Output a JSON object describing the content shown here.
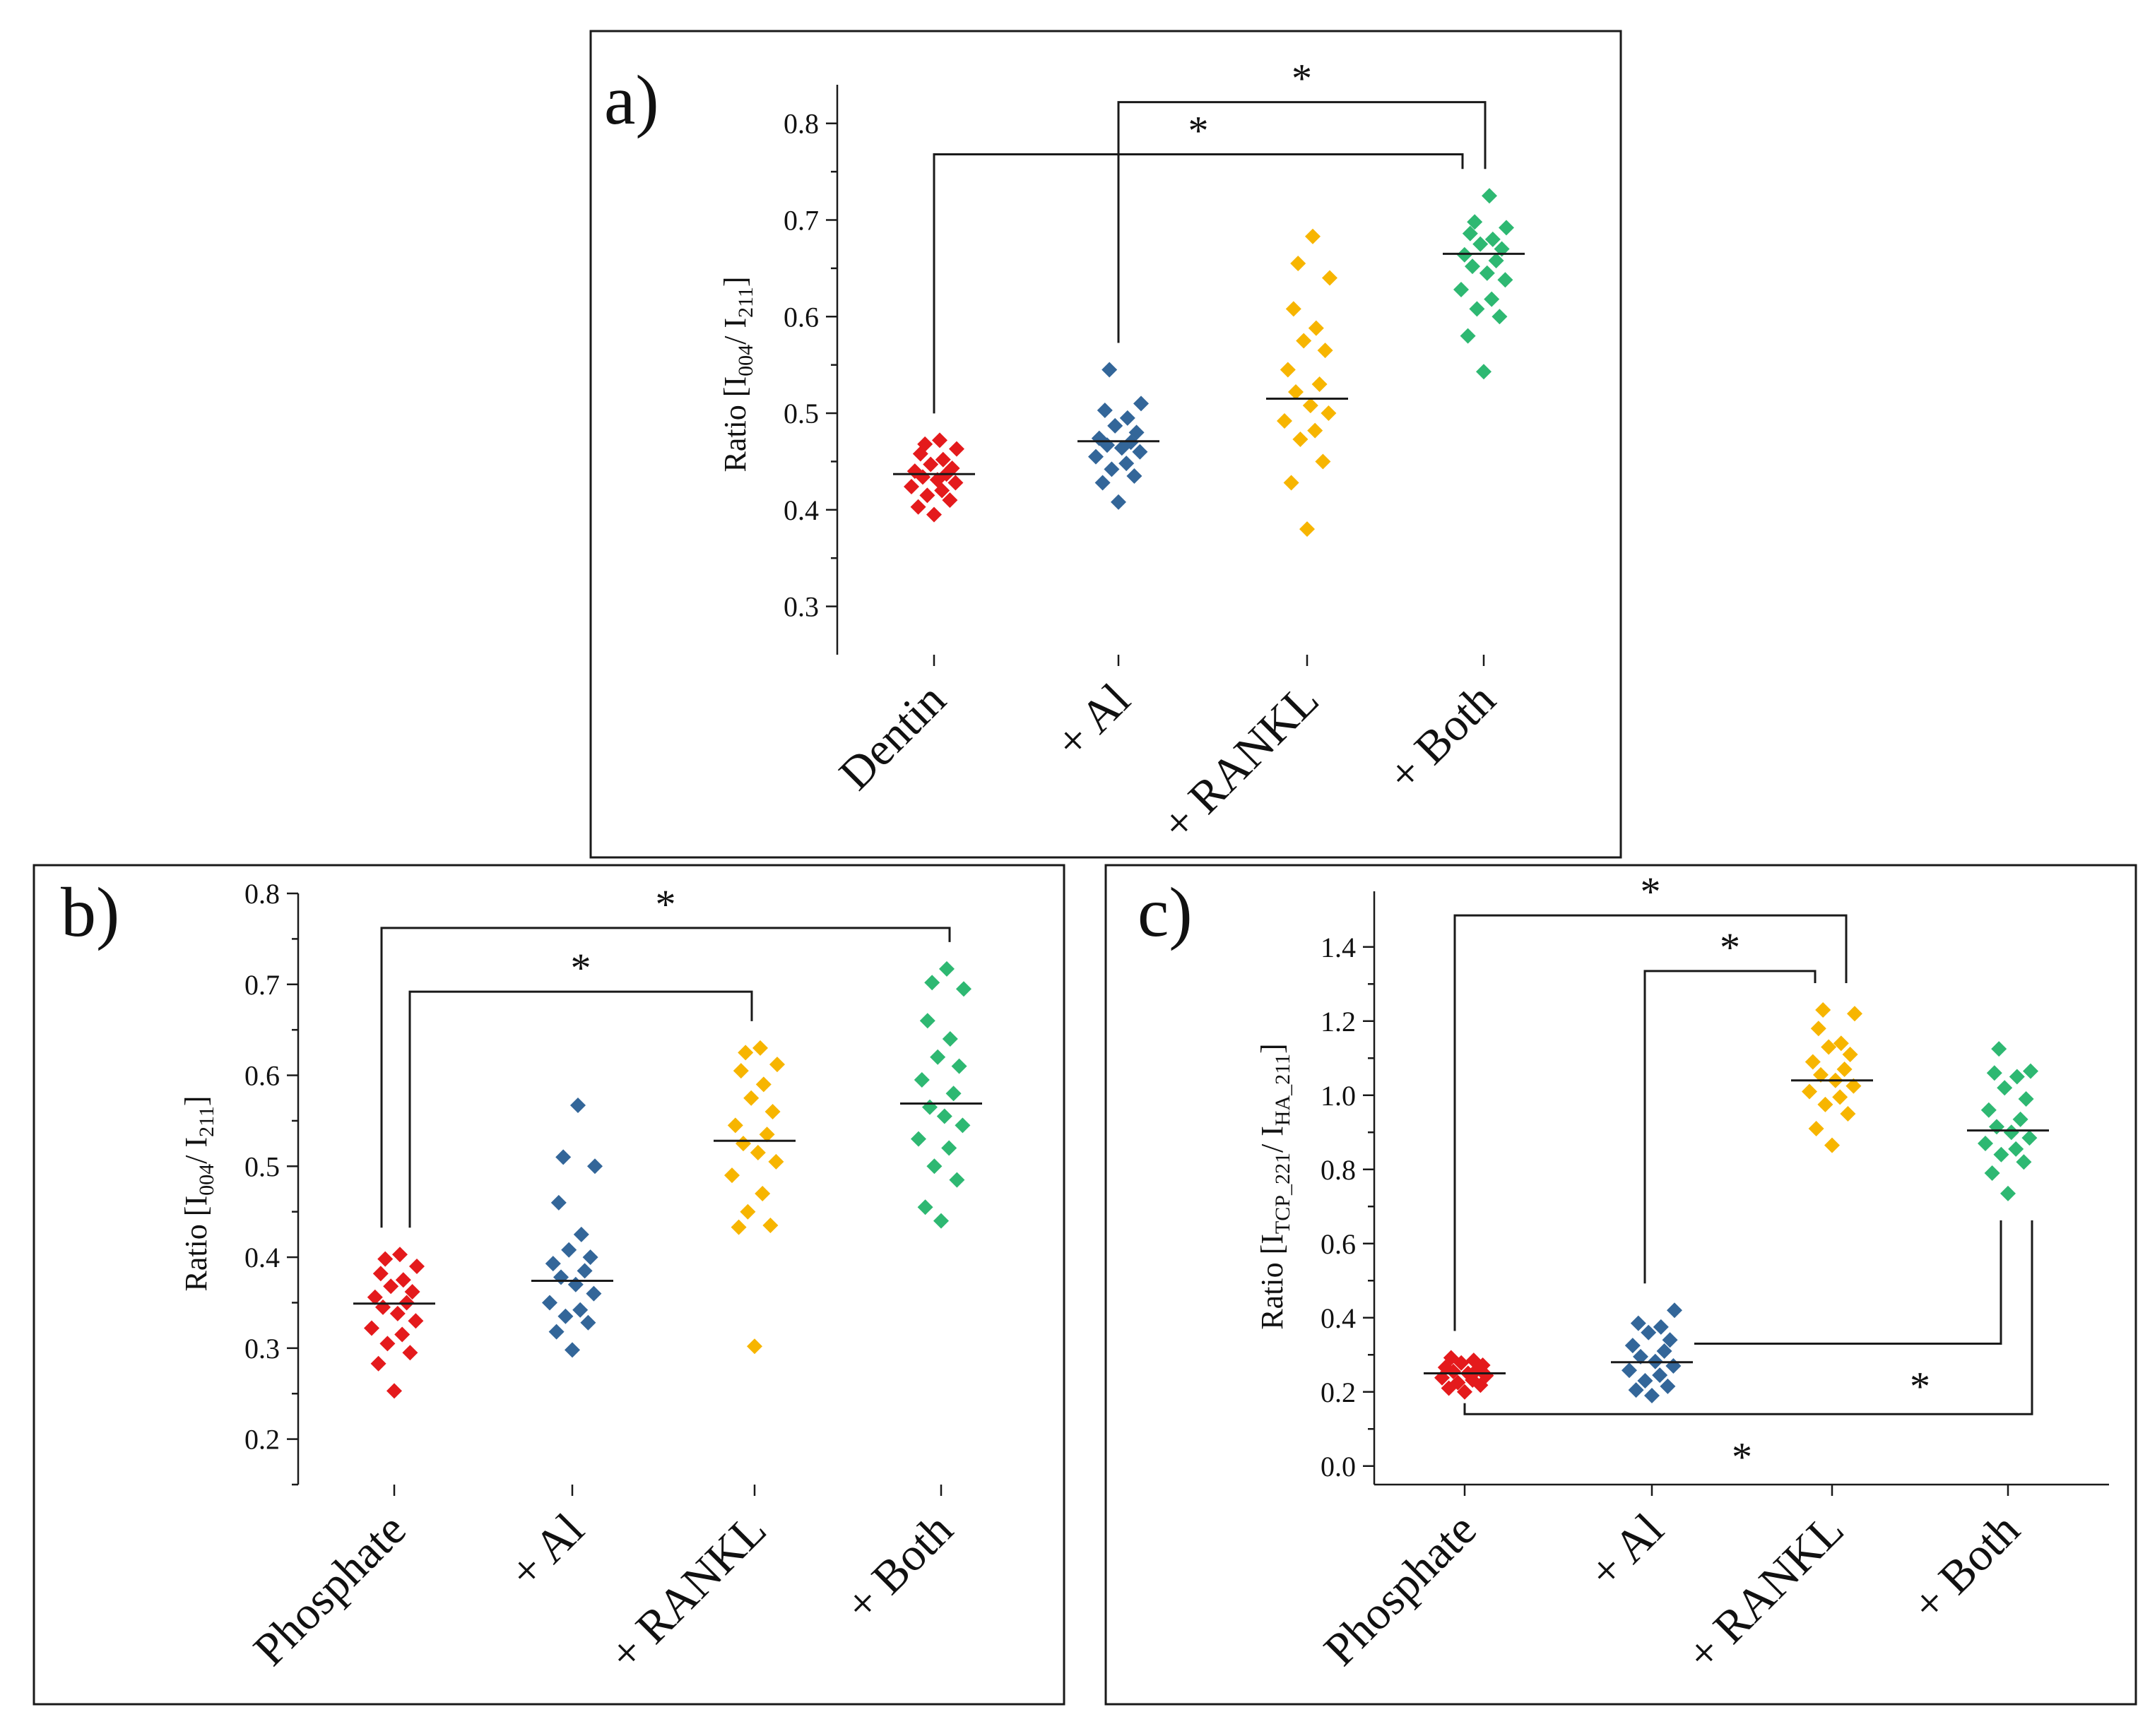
{
  "colors": {
    "red": "#e41a1c",
    "blue": "#336699",
    "orange": "#f7b500",
    "green": "#2eb872"
  },
  "chart_data": [
    {
      "id": "a",
      "type": "scatter",
      "panel_label": "a)",
      "ylabel": {
        "prefix": "Ratio [I",
        "sub1": "004",
        "mid": "/ I",
        "sub2": "211",
        "suffix": "]"
      },
      "ylim": [
        0.25,
        0.84
      ],
      "yticks": [
        0.3,
        0.4,
        0.5,
        0.6,
        0.7,
        0.8
      ],
      "yticks_labels": [
        "0.3",
        "0.4",
        "0.5",
        "0.6",
        "0.7",
        "0.8"
      ],
      "categories": [
        "Dentin",
        "+ Al",
        "+ RANKL",
        "+ Both"
      ],
      "series": [
        {
          "name": "Dentin",
          "color": "red",
          "mean": 0.437,
          "values": [
            0.395,
            0.403,
            0.41,
            0.415,
            0.42,
            0.424,
            0.428,
            0.431,
            0.434,
            0.437,
            0.44,
            0.443,
            0.447,
            0.452,
            0.458,
            0.463,
            0.468,
            0.472
          ]
        },
        {
          "name": "+ Al",
          "color": "blue",
          "mean": 0.471,
          "values": [
            0.408,
            0.428,
            0.435,
            0.442,
            0.448,
            0.455,
            0.46,
            0.464,
            0.467,
            0.47,
            0.474,
            0.48,
            0.487,
            0.495,
            0.503,
            0.51,
            0.545
          ]
        },
        {
          "name": "+ RANKL",
          "color": "orange",
          "mean": 0.515,
          "values": [
            0.38,
            0.428,
            0.45,
            0.473,
            0.482,
            0.492,
            0.5,
            0.508,
            0.522,
            0.53,
            0.545,
            0.565,
            0.575,
            0.588,
            0.608,
            0.64,
            0.655,
            0.683
          ]
        },
        {
          "name": "+ Both",
          "color": "green",
          "mean": 0.665,
          "values": [
            0.543,
            0.58,
            0.6,
            0.608,
            0.618,
            0.628,
            0.638,
            0.645,
            0.652,
            0.658,
            0.664,
            0.67,
            0.675,
            0.68,
            0.686,
            0.692,
            0.698,
            0.725
          ]
        }
      ],
      "brackets": [
        {
          "from": 0,
          "to": 3,
          "y": 0.768,
          "label": "*"
        },
        {
          "from": 1,
          "to": 3,
          "y": 0.822,
          "label": "*"
        }
      ]
    },
    {
      "id": "b",
      "type": "scatter",
      "panel_label": "b)",
      "ylabel": {
        "prefix": "Ratio [I",
        "sub1": "004",
        "mid": "/ I",
        "sub2": "211",
        "suffix": "]"
      },
      "ylim": [
        0.15,
        0.8
      ],
      "yticks": [
        0.2,
        0.3,
        0.4,
        0.5,
        0.6,
        0.7,
        0.8
      ],
      "yticks_labels": [
        "0.2",
        "0.3",
        "0.4",
        "0.5",
        "0.6",
        "0.7",
        "0.8"
      ],
      "categories": [
        "Phosphate",
        "+ Al",
        "+ RANKL",
        "+ Both"
      ],
      "series": [
        {
          "name": "Phosphate",
          "color": "red",
          "mean": 0.349,
          "values": [
            0.253,
            0.283,
            0.295,
            0.305,
            0.315,
            0.322,
            0.33,
            0.338,
            0.345,
            0.35,
            0.356,
            0.362,
            0.368,
            0.375,
            0.382,
            0.39,
            0.398,
            0.403
          ]
        },
        {
          "name": "+ Al",
          "color": "blue",
          "mean": 0.374,
          "values": [
            0.298,
            0.318,
            0.328,
            0.335,
            0.342,
            0.35,
            0.36,
            0.37,
            0.378,
            0.385,
            0.393,
            0.4,
            0.408,
            0.425,
            0.46,
            0.5,
            0.51,
            0.567
          ]
        },
        {
          "name": "+ RANKL",
          "color": "orange",
          "mean": 0.528,
          "values": [
            0.302,
            0.433,
            0.435,
            0.45,
            0.47,
            0.49,
            0.505,
            0.515,
            0.525,
            0.535,
            0.545,
            0.56,
            0.575,
            0.59,
            0.605,
            0.612,
            0.625,
            0.63
          ]
        },
        {
          "name": "+ Both",
          "color": "green",
          "mean": 0.569,
          "values": [
            0.44,
            0.455,
            0.485,
            0.5,
            0.52,
            0.53,
            0.545,
            0.555,
            0.565,
            0.58,
            0.595,
            0.61,
            0.62,
            0.64,
            0.66,
            0.695,
            0.702,
            0.717
          ]
        }
      ],
      "brackets": [
        {
          "from": 0,
          "to": 3,
          "y": 0.762,
          "label": "*"
        },
        {
          "from": 0,
          "to": 2,
          "y": 0.692,
          "label": "*"
        }
      ]
    },
    {
      "id": "c",
      "type": "scatter",
      "panel_label": "c)",
      "ylabel": {
        "prefix": "Ratio [I",
        "sub1": "TCP_221",
        "mid": "/ I",
        "sub2": "HA_211",
        "suffix": "]"
      },
      "ylim": [
        -0.05,
        1.55
      ],
      "yticks": [
        0.0,
        0.2,
        0.4,
        0.6,
        0.8,
        1.0,
        1.2,
        1.4
      ],
      "yticks_labels": [
        "0.0",
        "0.2",
        "0.4",
        "0.6",
        "0.8",
        "1.0",
        "1.2",
        "1.4"
      ],
      "categories": [
        "Phosphate",
        "+ Al",
        "+ RANKL",
        "+ Both"
      ],
      "series": [
        {
          "name": "Phosphate",
          "color": "red",
          "mean": 0.25,
          "values": [
            0.2,
            0.21,
            0.218,
            0.225,
            0.232,
            0.238,
            0.244,
            0.25,
            0.255,
            0.26,
            0.266,
            0.272,
            0.278,
            0.285,
            0.292
          ]
        },
        {
          "name": "+ Al",
          "color": "blue",
          "mean": 0.28,
          "values": [
            0.19,
            0.205,
            0.215,
            0.23,
            0.245,
            0.258,
            0.27,
            0.282,
            0.295,
            0.31,
            0.325,
            0.34,
            0.36,
            0.375,
            0.385,
            0.42
          ]
        },
        {
          "name": "+ RANKL",
          "color": "orange",
          "mean": 1.04,
          "values": [
            0.865,
            0.91,
            0.95,
            0.975,
            0.995,
            1.01,
            1.025,
            1.04,
            1.055,
            1.07,
            1.09,
            1.11,
            1.13,
            1.14,
            1.18,
            1.22,
            1.23
          ]
        },
        {
          "name": "+ Both",
          "color": "green",
          "mean": 0.905,
          "values": [
            0.735,
            0.79,
            0.82,
            0.84,
            0.855,
            0.87,
            0.885,
            0.9,
            0.915,
            0.935,
            0.96,
            0.99,
            1.02,
            1.05,
            1.06,
            1.065,
            1.125
          ]
        }
      ],
      "brackets_top": [
        {
          "from": 0,
          "to": 2,
          "y": 1.485,
          "label": "*"
        },
        {
          "from": 1,
          "to": 2,
          "y": 1.335,
          "label": "*"
        }
      ],
      "brackets_bottom": [
        {
          "from": 1,
          "to": 3,
          "y": 0.33,
          "label": "*"
        },
        {
          "from": 0,
          "to": 3,
          "y": 0.14,
          "label": "*"
        }
      ]
    }
  ]
}
